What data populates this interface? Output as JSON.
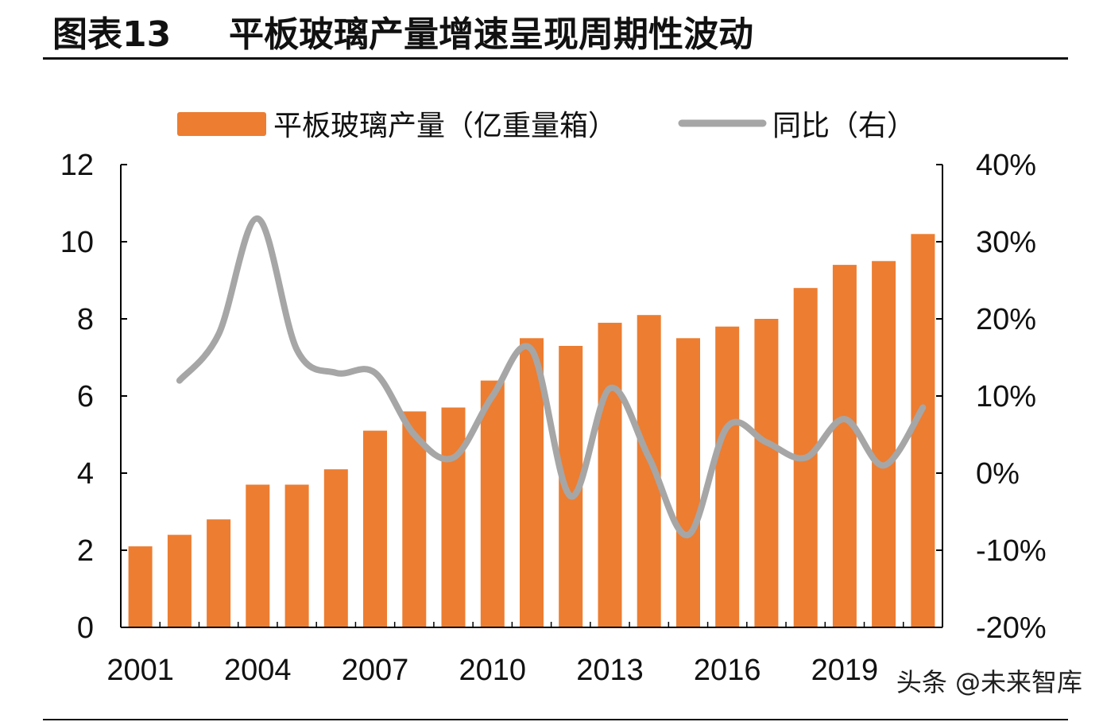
{
  "figure": {
    "label": "图表13",
    "title": "平板玻璃产量增速呈现周期性波动"
  },
  "watermark": "头条 @未来智库",
  "chart_data": {
    "type": "bar",
    "categories": [
      "2001",
      "2002",
      "2003",
      "2004",
      "2005",
      "2006",
      "2007",
      "2008",
      "2009",
      "2010",
      "2011",
      "2012",
      "2013",
      "2014",
      "2015",
      "2016",
      "2017",
      "2018",
      "2019",
      "2020",
      "2021"
    ],
    "x_tick_labels": [
      "2001",
      "2004",
      "2007",
      "2010",
      "2013",
      "2016",
      "2019"
    ],
    "series": [
      {
        "name": "平板玻璃产量（亿重量箱）",
        "type": "bar",
        "axis": "left",
        "color": "#ED7D31",
        "values": [
          2.1,
          2.4,
          2.8,
          3.7,
          3.7,
          4.1,
          5.1,
          5.6,
          5.7,
          6.4,
          7.5,
          7.3,
          7.9,
          8.1,
          7.5,
          7.8,
          8.0,
          8.8,
          9.4,
          9.5,
          10.2
        ]
      },
      {
        "name": "同比（右）",
        "type": "line",
        "axis": "right",
        "color": "#A6A6A6",
        "values": [
          null,
          12,
          18,
          33,
          16,
          13,
          13,
          5,
          2,
          10,
          16,
          -3,
          11,
          2,
          -8,
          6,
          4,
          2,
          7,
          1,
          8.5
        ]
      }
    ],
    "left_axis": {
      "ylim": [
        0,
        12
      ],
      "ticks": [
        0,
        2,
        4,
        6,
        8,
        10,
        12
      ],
      "tick_labels": [
        "0",
        "2",
        "4",
        "6",
        "8",
        "10",
        "12"
      ]
    },
    "right_axis": {
      "ylim": [
        -20,
        40
      ],
      "ticks": [
        -20,
        -10,
        0,
        10,
        20,
        30,
        40
      ],
      "tick_labels": [
        "-20%",
        "-10%",
        "0%",
        "10%",
        "20%",
        "30%",
        "40%"
      ]
    },
    "legend_position": "top",
    "grid": false
  }
}
